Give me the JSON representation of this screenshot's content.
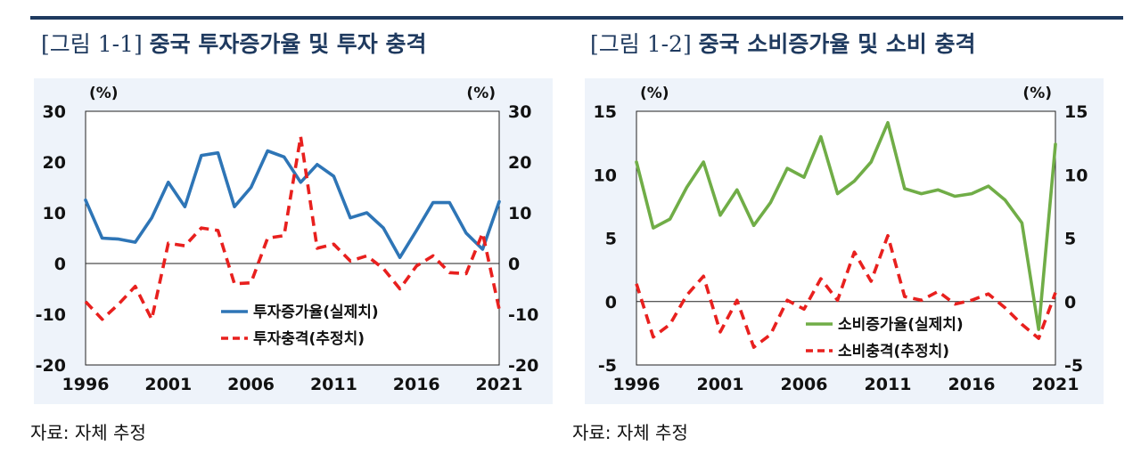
{
  "figures": [
    {
      "bracket": "[그림 1-1]",
      "title": "중국 투자증가율 및 투자 충격",
      "source": "자료: 자체 추정",
      "unit_left": "(%)",
      "unit_right": "(%)"
    },
    {
      "bracket": "[그림 1-2]",
      "title": "중국 소비증가율 및 소비 충격",
      "source": "자료: 자체 추정",
      "unit_left": "(%)",
      "unit_right": "(%)"
    }
  ],
  "chart_data": [
    {
      "type": "line",
      "title": "[그림 1-1] 중국 투자증가율 및 투자 충격",
      "ylim": [
        -20,
        30
      ],
      "yticks": [
        30,
        20,
        10,
        0,
        -10,
        -20
      ],
      "xlim": [
        1996,
        2021
      ],
      "xticks": [
        1996,
        2001,
        2006,
        2011,
        2016,
        2021
      ],
      "grid": false,
      "zero_line": true,
      "legend_position": "center-right",
      "x": [
        1996,
        1997,
        1998,
        1999,
        2000,
        2001,
        2002,
        2003,
        2004,
        2005,
        2006,
        2007,
        2008,
        2009,
        2010,
        2011,
        2012,
        2013,
        2014,
        2015,
        2016,
        2017,
        2018,
        2019,
        2020,
        2021
      ],
      "series": [
        {
          "name": "투자증가율(실제치)",
          "color": "#2e75b6",
          "style": "solid",
          "values": [
            12.5,
            5,
            4.8,
            4.2,
            9,
            16,
            11.2,
            21.3,
            21.8,
            11.2,
            15,
            22.2,
            21,
            16,
            19.5,
            17.2,
            9,
            10,
            7,
            1.2,
            6.5,
            12,
            12,
            6,
            2.8,
            12.2
          ]
        },
        {
          "name": "투자충격(추정치)",
          "color": "#e8201e",
          "style": "dashed",
          "values": [
            -7.5,
            -11,
            -8,
            -4.5,
            -11,
            4,
            3.5,
            7,
            6.5,
            -4,
            -3.8,
            5,
            5.5,
            25,
            3,
            3.8,
            0.5,
            1.5,
            -1,
            -5,
            -0.5,
            1.5,
            -1.8,
            -2,
            6,
            -9
          ]
        }
      ]
    },
    {
      "type": "line",
      "title": "[그림 1-2] 중국 소비증가율 및 소비 충격",
      "ylim": [
        -5,
        15
      ],
      "yticks": [
        15,
        10,
        5,
        0,
        -5
      ],
      "xlim": [
        1996,
        2021
      ],
      "xticks": [
        1996,
        2001,
        2006,
        2011,
        2016,
        2021
      ],
      "grid": false,
      "zero_line": true,
      "legend_position": "bottom-right",
      "x": [
        1996,
        1997,
        1998,
        1999,
        2000,
        2001,
        2002,
        2003,
        2004,
        2005,
        2006,
        2007,
        2008,
        2009,
        2010,
        2011,
        2012,
        2013,
        2014,
        2015,
        2016,
        2017,
        2018,
        2019,
        2020,
        2021
      ],
      "series": [
        {
          "name": "소비증가율(실제치)",
          "color": "#70ad47",
          "style": "solid",
          "values": [
            11,
            5.8,
            6.5,
            9,
            11,
            6.8,
            8.8,
            6,
            7.8,
            10.5,
            9.8,
            13,
            8.5,
            9.5,
            11,
            14.1,
            8.9,
            8.5,
            8.8,
            8.3,
            8.5,
            9.1,
            8,
            6.2,
            -2.2,
            12.4
          ]
        },
        {
          "name": "소비충격(추정치)",
          "color": "#e8201e",
          "style": "dashed",
          "values": [
            1.4,
            -2.8,
            -1.8,
            0.5,
            2,
            -2.4,
            0.1,
            -3.6,
            -2.6,
            0.1,
            -0.6,
            1.8,
            0.1,
            3.9,
            1.6,
            5.2,
            0.4,
            0.1,
            0.8,
            -0.2,
            0.1,
            0.6,
            -0.5,
            -1.8,
            -2.9,
            0.7
          ]
        }
      ]
    }
  ]
}
